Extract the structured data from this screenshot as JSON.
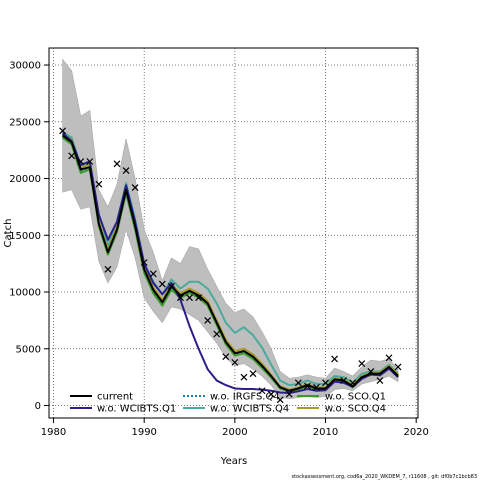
{
  "chart_data": {
    "type": "line",
    "xlabel": "Years",
    "ylabel": "Catch",
    "xlim": [
      1979.5,
      2020.2
    ],
    "ylim": [
      -1100,
      31500
    ],
    "x_ticks": [
      "1980",
      "1990",
      "2000",
      "2010",
      "2020"
    ],
    "y_ticks": [
      "0",
      "5000",
      "10000",
      "15000",
      "20000",
      "25000",
      "30000"
    ],
    "grid": true,
    "legend_placement": "bottom",
    "footer": "stockassessment.org, cod6a_2020_WKDEM_7, r11608 , git: df0b7c1bcb83",
    "band": {
      "color": "#bebebe",
      "x": [
        1981,
        1982,
        1983,
        1984,
        1985,
        1986,
        1987,
        1988,
        1989,
        1990,
        1991,
        1992,
        1993,
        1994,
        1995,
        1996,
        1997,
        1998,
        1999,
        2000,
        2001,
        2002,
        2003,
        2004,
        2005,
        2006,
        2007,
        2008,
        2009,
        2010,
        2011,
        2012,
        2013,
        2014,
        2015,
        2016,
        2017,
        2018
      ],
      "upper": [
        30500,
        29500,
        25500,
        26000,
        19000,
        17500,
        19500,
        23500,
        20000,
        15500,
        13500,
        11000,
        13000,
        12500,
        14000,
        13800,
        12000,
        10500,
        9000,
        8200,
        8500,
        7800,
        6500,
        5000,
        3000,
        2400,
        2500,
        2700,
        2500,
        2400,
        3300,
        3000,
        2600,
        3400,
        4000,
        3900,
        4100,
        3200
      ],
      "lower": [
        18800,
        19000,
        17300,
        17500,
        12700,
        10800,
        12200,
        15500,
        13000,
        9500,
        8300,
        7300,
        8700,
        8500,
        8000,
        7500,
        6500,
        5500,
        4200,
        3500,
        3700,
        3200,
        2600,
        1800,
        700,
        600,
        700,
        800,
        700,
        800,
        1400,
        1500,
        1300,
        1900,
        2100,
        2300,
        2600,
        2100
      ]
    },
    "series": [
      {
        "name": "current",
        "color": "#000000",
        "x": [
          1981,
          1982,
          1983,
          1984,
          1985,
          1986,
          1987,
          1988,
          1989,
          1990,
          1991,
          1992,
          1993,
          1994,
          1995,
          1996,
          1997,
          1998,
          1999,
          2000,
          2001,
          2002,
          2003,
          2004,
          2005,
          2006,
          2007,
          2008,
          2009,
          2010,
          2011,
          2012,
          2013,
          2014,
          2015,
          2016,
          2017,
          2018
        ],
        "values": [
          23800,
          23200,
          20800,
          21000,
          16000,
          13500,
          15500,
          19000,
          15800,
          12000,
          10200,
          9100,
          10500,
          9700,
          10100,
          9700,
          9000,
          7300,
          5600,
          4600,
          4800,
          4300,
          3500,
          2600,
          1600,
          1300,
          1500,
          1800,
          1500,
          1500,
          2300,
          2200,
          1700,
          2500,
          2800,
          2800,
          3400,
          2600
        ]
      },
      {
        "name": "w.o. WCIBTS.Q1",
        "color": "#2b1f8a",
        "x": [
          1981,
          1982,
          1983,
          1984,
          1985,
          1986,
          1987,
          1988,
          1989,
          1990,
          1991,
          1992,
          1993,
          1994,
          1995,
          1996,
          1997,
          1998,
          1999,
          2000,
          2001,
          2002,
          2003,
          2004,
          2005,
          2006,
          2007,
          2008,
          2009,
          2010,
          2011,
          2012,
          2013,
          2014,
          2015,
          2016,
          2017,
          2018
        ],
        "values": [
          24000,
          23300,
          21200,
          21500,
          16800,
          14600,
          16200,
          19400,
          16200,
          12500,
          10800,
          9800,
          10800,
          9300,
          7000,
          5000,
          3200,
          2200,
          1800,
          1500,
          1450,
          1450,
          1400,
          1300,
          1150,
          1100,
          1250,
          1450,
          1300,
          1350,
          2100,
          2000,
          1650,
          2350,
          2750,
          2650,
          3250,
          2500
        ]
      },
      {
        "name": "w.o. IRGFS.Q4",
        "color": "#1a7fa8",
        "dash": "2,2",
        "x": [
          1981,
          1982,
          1983,
          1984,
          1985,
          1986,
          1987,
          1988,
          1989,
          1990,
          1991,
          1992,
          1993,
          1994,
          1995,
          1996,
          1997,
          1998,
          1999,
          2000,
          2001,
          2002,
          2003,
          2004,
          2005,
          2006,
          2007,
          2008,
          2009,
          2010,
          2011,
          2012,
          2013,
          2014,
          2015,
          2016,
          2017,
          2018
        ],
        "values": [
          23700,
          23100,
          20700,
          20900,
          15900,
          13400,
          15400,
          18900,
          15700,
          11900,
          10100,
          9000,
          10400,
          9600,
          10000,
          9600,
          8900,
          7200,
          5500,
          4500,
          4700,
          4200,
          3400,
          2500,
          1500,
          1250,
          1450,
          1750,
          1450,
          1450,
          2250,
          2150,
          1650,
          2450,
          2750,
          2750,
          3350,
          2550
        ]
      },
      {
        "name": "w.o. WCIBTS.Q4",
        "color": "#4aab9c",
        "x": [
          1981,
          1982,
          1983,
          1984,
          1985,
          1986,
          1987,
          1988,
          1989,
          1990,
          1991,
          1992,
          1993,
          1994,
          1995,
          1996,
          1997,
          1998,
          1999,
          2000,
          2001,
          2002,
          2003,
          2004,
          2005,
          2006,
          2007,
          2008,
          2009,
          2010,
          2011,
          2012,
          2013,
          2014,
          2015,
          2016,
          2017,
          2018
        ],
        "values": [
          24100,
          23600,
          21100,
          21300,
          16500,
          14100,
          16100,
          19600,
          16400,
          12500,
          10900,
          9800,
          11100,
          10300,
          10900,
          10900,
          10300,
          9000,
          7300,
          6400,
          6900,
          6200,
          5100,
          3600,
          2200,
          1800,
          1900,
          2200,
          1900,
          1900,
          2600,
          2500,
          2000,
          2800,
          3000,
          3000,
          3600,
          2800
        ]
      },
      {
        "name": "w.o. SCO.Q1",
        "color": "#3b9a2a",
        "x": [
          1981,
          1982,
          1983,
          1984,
          1985,
          1986,
          1987,
          1988,
          1989,
          1990,
          1991,
          1992,
          1993,
          1994,
          1995,
          1996,
          1997,
          1998,
          1999,
          2000,
          2001,
          2002,
          2003,
          2004,
          2005,
          2006,
          2007,
          2008,
          2009,
          2010,
          2011,
          2012,
          2013,
          2014,
          2015,
          2016,
          2017,
          2018
        ],
        "values": [
          23600,
          23000,
          20500,
          20800,
          15800,
          13300,
          15300,
          18700,
          15500,
          11700,
          9900,
          8800,
          10200,
          9500,
          9900,
          9500,
          8800,
          7100,
          5400,
          4400,
          4600,
          4100,
          3300,
          2450,
          1500,
          1250,
          1400,
          1700,
          1400,
          1400,
          2200,
          2100,
          1600,
          2400,
          2700,
          2700,
          3300,
          2500
        ]
      },
      {
        "name": "w.o. SCO.Q4",
        "color": "#a89a2a",
        "x": [
          1981,
          1982,
          1983,
          1984,
          1985,
          1986,
          1987,
          1988,
          1989,
          1990,
          1991,
          1992,
          1993,
          1994,
          1995,
          1996,
          1997,
          1998,
          1999,
          2000,
          2001,
          2002,
          2003,
          2004,
          2005,
          2006,
          2007,
          2008,
          2009,
          2010,
          2011,
          2012,
          2013,
          2014,
          2015,
          2016,
          2017,
          2018
        ],
        "values": [
          23900,
          23400,
          21000,
          21200,
          16200,
          13700,
          15800,
          19300,
          16100,
          12200,
          10400,
          9300,
          10700,
          9900,
          10300,
          9900,
          9200,
          7500,
          5800,
          4800,
          5000,
          4500,
          3700,
          2700,
          1700,
          1400,
          1600,
          1900,
          1600,
          1600,
          2400,
          2300,
          1800,
          2600,
          2900,
          2900,
          3500,
          2700
        ]
      }
    ],
    "observed": {
      "name": "observed",
      "marker": "x",
      "x": [
        1981,
        1982,
        1983,
        1984,
        1985,
        1986,
        1987,
        1988,
        1989,
        1990,
        1991,
        1992,
        1993,
        1994,
        1995,
        1996,
        1997,
        1998,
        1999,
        2000,
        2001,
        2002,
        2003,
        2004,
        2005,
        2006,
        2007,
        2008,
        2009,
        2010,
        2011,
        2012,
        2013,
        2014,
        2015,
        2016,
        2017,
        2018
      ],
      "values": [
        24200,
        22000,
        21500,
        21500,
        19500,
        12000,
        21300,
        20700,
        19200,
        12600,
        11600,
        10700,
        10500,
        9500,
        9500,
        9500,
        7500,
        6300,
        4300,
        3800,
        2500,
        2800,
        1300,
        1000,
        500,
        1000,
        2000,
        1700,
        1600,
        2000,
        4100,
        2200,
        2000,
        3700,
        3000,
        2200,
        4200,
        3400
      ]
    },
    "legend": {
      "col1": [
        "current",
        "w.o. WCIBTS.Q1"
      ],
      "col2": [
        "w.o. IRGFS.Q4",
        "w.o. WCIBTS.Q4"
      ],
      "col3": [
        "w.o. SCO.Q1",
        "w.o. SCO.Q4"
      ]
    }
  }
}
